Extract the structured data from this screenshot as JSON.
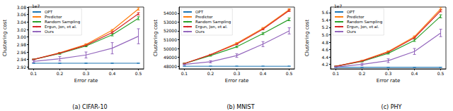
{
  "chart_data": [
    {
      "type": "line",
      "title": "(a) CIFAR-10",
      "x_label": "Error rate",
      "y_label": "Clustering cost",
      "y_scale_label": "1e7",
      "x": [
        0.1,
        0.2,
        0.3,
        0.4,
        0.5
      ],
      "xlim": [
        0.08,
        0.52
      ],
      "xticks": [
        0.1,
        0.2,
        0.3,
        0.4,
        0.5
      ],
      "ylim": [
        2.915,
        3.08
      ],
      "yticks": [
        2.92,
        2.94,
        2.96,
        2.98,
        {
          "value": 3,
          "label": "3.00"
        },
        3.02,
        3.04,
        3.06,
        3.08
      ],
      "legend": "upper left",
      "grid": false,
      "series": [
        {
          "name": "OPT",
          "color": "#1f77b4",
          "values": [
            2.93,
            2.93,
            2.93,
            2.93,
            2.93
          ],
          "errors": [
            0,
            0,
            0,
            0,
            0
          ]
        },
        {
          "name": "Predictor",
          "color": "#ff7f0e",
          "values": [
            2.94,
            2.958,
            2.98,
            3.018,
            3.075
          ],
          "errors": [
            0.001,
            0.001,
            0.002,
            0.002,
            0.003
          ]
        },
        {
          "name": "Random Sampling",
          "color": "#2ca02c",
          "values": [
            2.94,
            2.956,
            2.976,
            3.006,
            3.05
          ],
          "errors": [
            0.001,
            0.002,
            0.002,
            0.003,
            0.004
          ]
        },
        {
          "name": "Ergun, Jon, et al.",
          "color": "#d62728",
          "values": [
            2.94,
            2.957,
            2.978,
            3.012,
            3.062
          ],
          "errors": [
            0.001,
            0.001,
            0.002,
            0.002,
            0.003
          ]
        },
        {
          "name": "Ours",
          "color": "#9467bd",
          "values": [
            2.935,
            2.942,
            2.952,
            2.97,
            3.002
          ],
          "errors": [
            0.003,
            0.006,
            0.008,
            0.015,
            0.02
          ]
        }
      ]
    },
    {
      "type": "line",
      "title": "(b) MNIST",
      "x_label": "Error rate",
      "y_label": "Clustering cost",
      "x": [
        0.1,
        0.2,
        0.3,
        0.4,
        0.5
      ],
      "xlim": [
        0.08,
        0.52
      ],
      "xticks": [
        0.1,
        0.2,
        0.3,
        0.4,
        0.5
      ],
      "ylim": [
        47700,
        54700
      ],
      "yticks": [
        48000,
        49000,
        50000,
        51000,
        52000,
        53000,
        54000
      ],
      "legend": "upper left",
      "grid": false,
      "series": [
        {
          "name": "OPT",
          "color": "#1f77b4",
          "values": [
            48000,
            48000,
            48000,
            48000,
            48000
          ],
          "errors": [
            0,
            0,
            0,
            0,
            0
          ]
        },
        {
          "name": "Predictor",
          "color": "#ff7f0e",
          "values": [
            48300,
            49300,
            50600,
            52300,
            54400
          ],
          "errors": [
            30,
            40,
            60,
            80,
            100
          ]
        },
        {
          "name": "Random Sampling",
          "color": "#2ca02c",
          "values": [
            48300,
            49200,
            50200,
            51700,
            53300
          ],
          "errors": [
            40,
            60,
            90,
            120,
            150
          ]
        },
        {
          "name": "Ergun, Jon, et al.",
          "color": "#d62728",
          "values": [
            48300,
            49300,
            50500,
            52200,
            54300
          ],
          "errors": [
            30,
            40,
            60,
            80,
            100
          ]
        },
        {
          "name": "Ours",
          "color": "#9467bd",
          "values": [
            48200,
            48500,
            49200,
            50500,
            52000
          ],
          "errors": [
            60,
            120,
            200,
            280,
            350
          ]
        }
      ]
    },
    {
      "type": "line",
      "title": "(c) PHY",
      "x_label": "Error rate",
      "y_label": "Clustering cost",
      "y_scale_label": "1e7",
      "x": [
        0.1,
        0.2,
        0.3,
        0.4,
        0.5
      ],
      "xlim": [
        0.08,
        0.52
      ],
      "xticks": [
        0.1,
        0.2,
        0.3,
        0.4,
        0.5
      ],
      "ylim": [
        4.08,
        5.75
      ],
      "yticks": [
        4.2,
        4.4,
        4.6,
        4.8,
        {
          "value": 5,
          "label": "5.0"
        },
        5.2,
        5.4,
        5.6
      ],
      "legend": "upper left",
      "grid": false,
      "series": [
        {
          "name": "OPT",
          "color": "#1f77b4",
          "values": [
            4.12,
            4.12,
            4.12,
            4.12,
            4.12
          ],
          "errors": [
            0,
            0,
            0,
            0,
            0
          ]
        },
        {
          "name": "Predictor",
          "color": "#ff7f0e",
          "values": [
            4.15,
            4.3,
            4.55,
            4.95,
            5.7
          ],
          "errors": [
            0.005,
            0.01,
            0.015,
            0.02,
            0.03
          ]
        },
        {
          "name": "Random Sampling",
          "color": "#2ca02c",
          "values": [
            4.15,
            4.28,
            4.5,
            4.85,
            5.5
          ],
          "errors": [
            0.005,
            0.01,
            0.02,
            0.03,
            0.04
          ]
        },
        {
          "name": "Ergun, Jon, et al.",
          "color": "#d62728",
          "values": [
            4.15,
            4.29,
            4.53,
            4.92,
            5.65
          ],
          "errors": [
            0.005,
            0.01,
            0.015,
            0.02,
            0.03
          ]
        },
        {
          "name": "Ours",
          "color": "#9467bd",
          "values": [
            4.13,
            4.2,
            4.3,
            4.55,
            5.05
          ],
          "errors": [
            0.01,
            0.03,
            0.05,
            0.08,
            0.1
          ]
        }
      ]
    }
  ]
}
